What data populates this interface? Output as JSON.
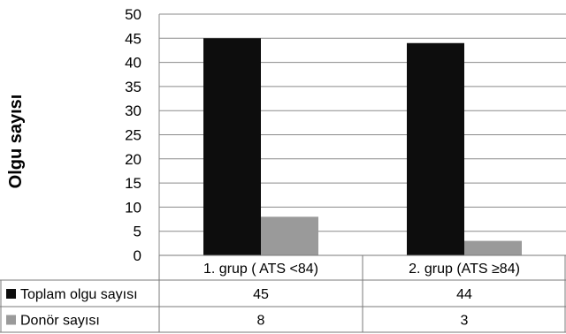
{
  "chart_data": {
    "type": "bar",
    "ylabel": "Olgu sayısı",
    "ylim": [
      0,
      50
    ],
    "yticks": [
      0,
      5,
      10,
      15,
      20,
      25,
      30,
      35,
      40,
      45,
      50
    ],
    "grid": true,
    "categories": [
      "1. grup ( ATS <84)",
      "2. grup (ATS ≥84)"
    ],
    "series": [
      {
        "name": "Toplam olgu sayısı",
        "values": [
          45,
          44
        ],
        "color": "#0d0d0d"
      },
      {
        "name": "Donör sayısı",
        "values": [
          8,
          3
        ],
        "color": "#9a9a9a"
      }
    ]
  }
}
